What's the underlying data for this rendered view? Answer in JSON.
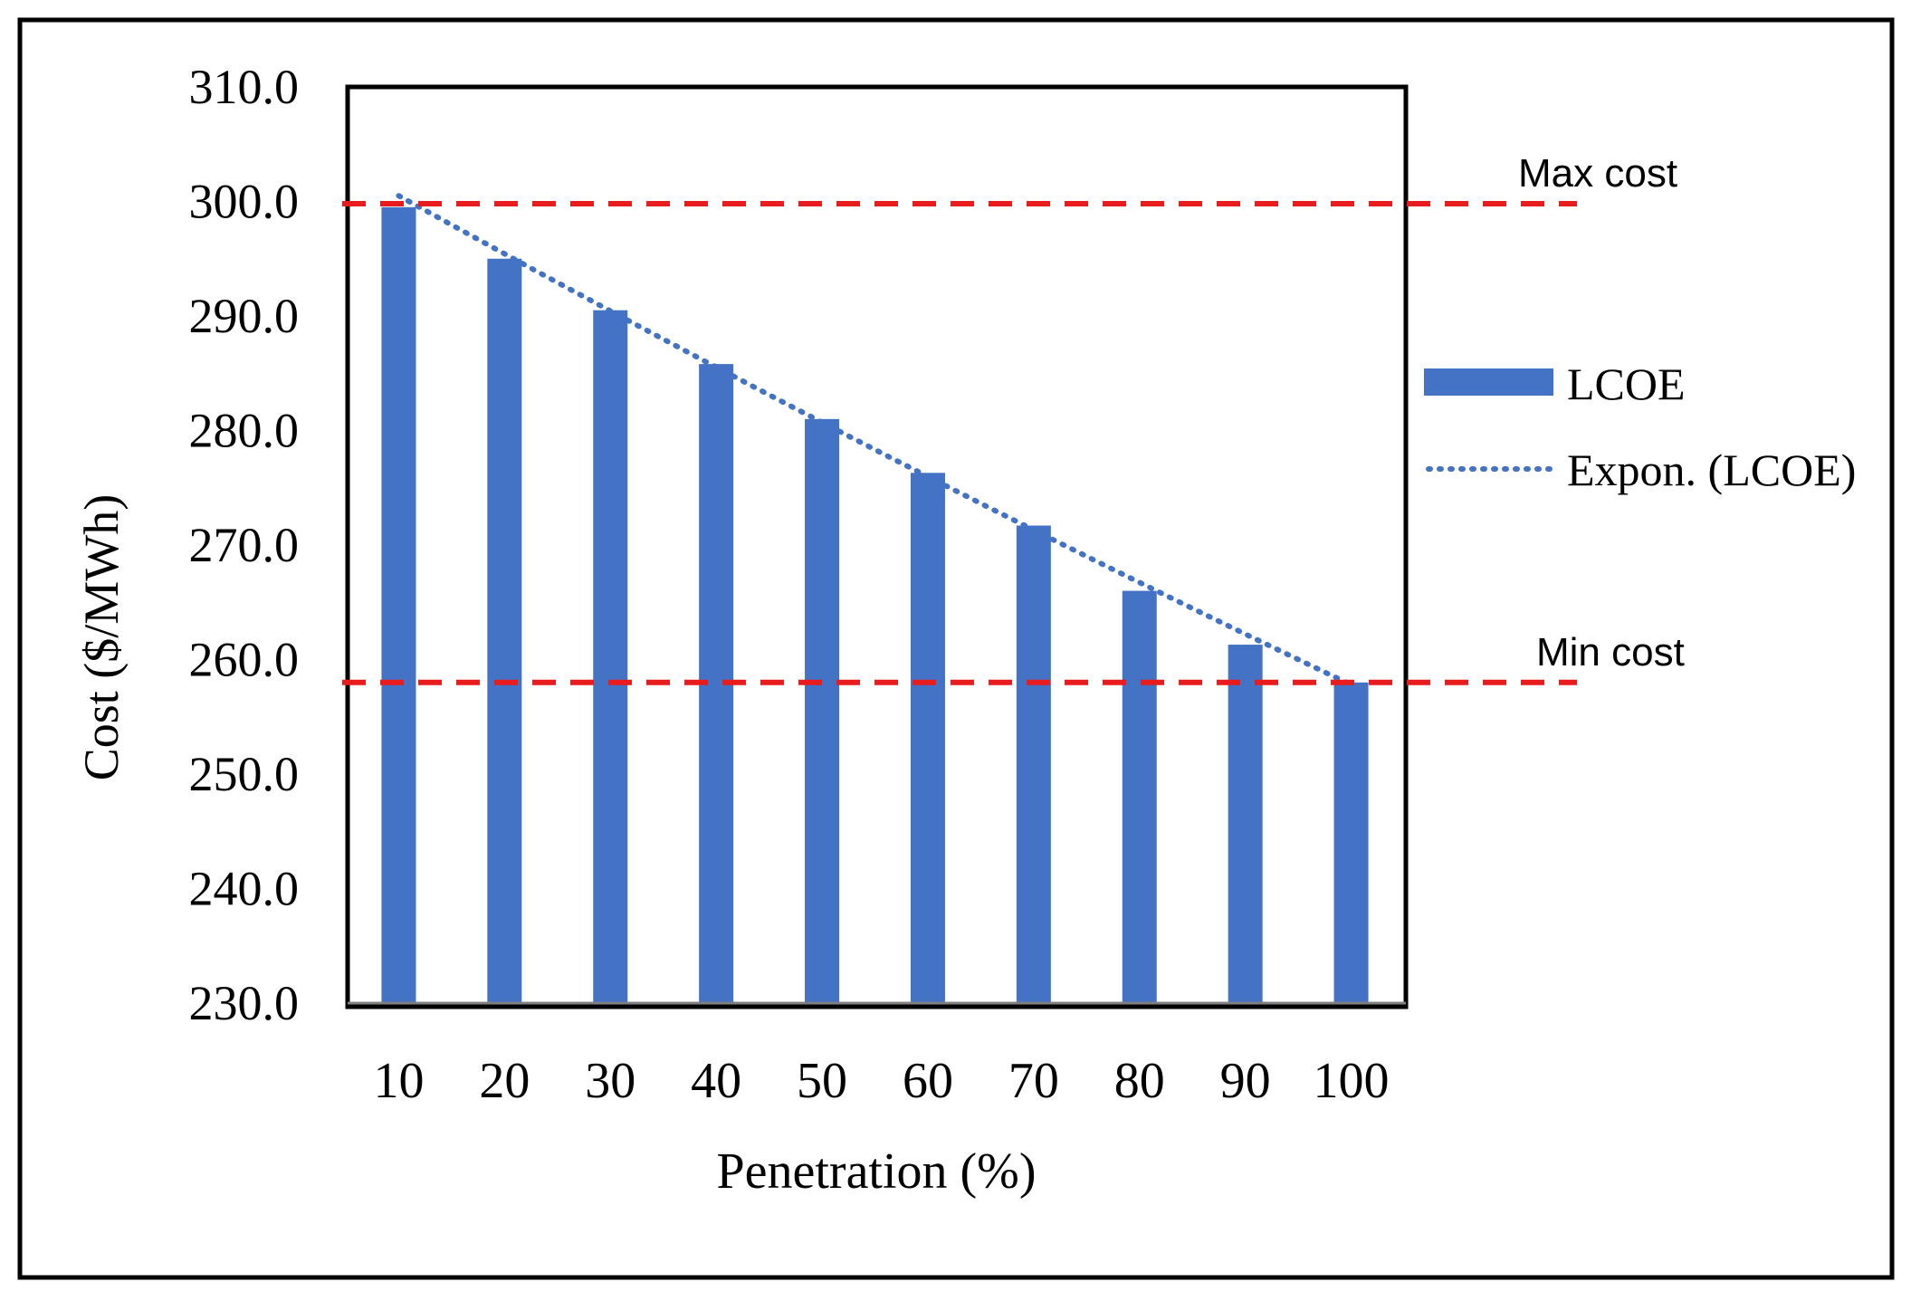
{
  "chart_data": {
    "type": "bar",
    "categories": [
      "10",
      "20",
      "30",
      "40",
      "50",
      "60",
      "70",
      "80",
      "90",
      "100"
    ],
    "series": [
      {
        "name": "LCOE",
        "values": [
          299.5,
          295.0,
          290.5,
          285.8,
          281.0,
          276.3,
          271.7,
          266.0,
          261.3,
          258.0
        ]
      }
    ],
    "trendline": {
      "name": "Expon. (LCOE)",
      "type": "exponential",
      "start_value": 300.5,
      "end_value": 257.8
    },
    "reference_lines": [
      {
        "label": "Max cost",
        "value": 299.8
      },
      {
        "label": "Min cost",
        "value": 258.0
      }
    ],
    "xlabel": "Penetration (%)",
    "ylabel": "Cost ($/MWh)",
    "ylim": [
      230,
      310
    ],
    "yticks": [
      "230.0",
      "240.0",
      "250.0",
      "260.0",
      "270.0",
      "280.0",
      "290.0",
      "300.0",
      "310.0"
    ],
    "legend": [
      "LCOE",
      "Expon. (LCOE)"
    ],
    "legend_position": "right",
    "colors": {
      "bar": "#4472C4",
      "trend": "#4472C4",
      "reference": "#E81C1C",
      "frame": "#000000"
    }
  }
}
